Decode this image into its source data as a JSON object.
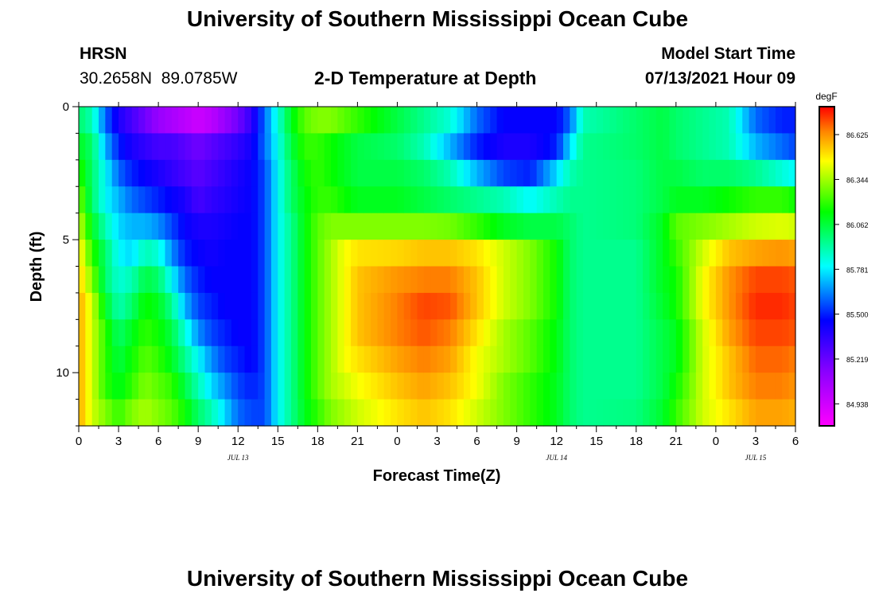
{
  "header": {
    "title": "University of Southern Mississippi Ocean Cube",
    "station": "HRSN",
    "coords": "30.2658N  89.0785W",
    "plot_title": "2-D Temperature at Depth",
    "model_label": "Model Start Time",
    "model_time": "07/13/2021 Hour 09"
  },
  "footer": {
    "title": "University of Southern Mississippi Ocean Cube"
  },
  "chart_data": {
    "type": "heatmap",
    "title": "2-D Temperature at Depth",
    "xlabel": "Forecast Time(Z)",
    "ylabel": "Depth (ft)",
    "x_hours": [
      0,
      54
    ],
    "y_range": [
      0,
      12
    ],
    "x_ticks": [
      "0",
      "3",
      "6",
      "9",
      "12",
      "15",
      "18",
      "21",
      "0",
      "3",
      "6",
      "9",
      "12",
      "15",
      "18",
      "21",
      "0",
      "3",
      "6"
    ],
    "y_ticks": [
      "0",
      "5",
      "10"
    ],
    "date_labels": [
      {
        "hour": 12,
        "label": "JUL 13"
      },
      {
        "hour": 36,
        "label": "JUL 14"
      },
      {
        "hour": 51,
        "label": "JUL 15"
      }
    ],
    "colorbar": {
      "unit": "degF",
      "min": 84.8,
      "max": 86.8,
      "ticks": [
        "86.625",
        "86.344",
        "86.062",
        "85.781",
        "85.500",
        "85.219",
        "84.938"
      ]
    },
    "depth_rows": [
      0,
      0.5,
      1,
      2,
      3,
      4,
      5,
      6,
      7,
      8,
      9,
      10,
      11,
      12
    ],
    "samples": [
      {
        "hour": 0,
        "values": [
          86.0,
          86.0,
          86.1,
          86.2,
          86.3,
          86.4,
          86.5,
          86.55,
          86.6,
          86.6,
          86.6,
          86.6,
          86.6,
          86.55
        ]
      },
      {
        "hour": 1,
        "values": [
          85.9,
          85.9,
          86.0,
          86.0,
          86.0,
          86.1,
          86.2,
          86.3,
          86.4,
          86.4,
          86.4,
          86.4,
          86.4,
          86.35
        ]
      },
      {
        "hour": 2,
        "values": [
          85.6,
          85.6,
          85.7,
          85.8,
          85.8,
          85.9,
          86.0,
          86.0,
          86.1,
          86.2,
          86.2,
          86.2,
          86.3,
          86.3
        ]
      },
      {
        "hour": 3,
        "values": [
          85.4,
          85.4,
          85.5,
          85.6,
          85.7,
          85.75,
          85.8,
          85.85,
          85.9,
          86.0,
          86.05,
          86.1,
          86.2,
          86.3
        ]
      },
      {
        "hour": 4,
        "values": [
          85.3,
          85.3,
          85.4,
          85.5,
          85.6,
          85.7,
          85.75,
          85.9,
          86.0,
          86.1,
          86.15,
          86.2,
          86.3,
          86.35
        ]
      },
      {
        "hour": 5,
        "values": [
          85.2,
          85.2,
          85.35,
          85.45,
          85.55,
          85.7,
          85.9,
          86.05,
          86.15,
          86.2,
          86.25,
          86.3,
          86.35,
          86.4
        ]
      },
      {
        "hour": 6,
        "values": [
          85.1,
          85.1,
          85.3,
          85.4,
          85.5,
          85.65,
          85.85,
          86.0,
          86.1,
          86.15,
          86.2,
          86.25,
          86.3,
          86.35
        ]
      },
      {
        "hour": 7,
        "values": [
          85.05,
          85.05,
          85.3,
          85.35,
          85.45,
          85.55,
          85.65,
          85.8,
          85.95,
          86.05,
          86.1,
          86.2,
          86.25,
          86.3
        ]
      },
      {
        "hour": 8,
        "values": [
          85.0,
          85.0,
          85.25,
          85.3,
          85.4,
          85.45,
          85.5,
          85.6,
          85.7,
          85.85,
          85.95,
          86.05,
          86.15,
          86.2
        ]
      },
      {
        "hour": 9,
        "values": [
          84.95,
          84.95,
          85.2,
          85.25,
          85.3,
          85.4,
          85.45,
          85.5,
          85.55,
          85.65,
          85.8,
          85.9,
          86.0,
          86.1
        ]
      },
      {
        "hour": 10,
        "values": [
          85.0,
          85.0,
          85.25,
          85.3,
          85.35,
          85.4,
          85.42,
          85.45,
          85.5,
          85.55,
          85.65,
          85.75,
          85.9,
          86.0
        ]
      },
      {
        "hour": 11,
        "values": [
          85.1,
          85.1,
          85.3,
          85.35,
          85.38,
          85.42,
          85.45,
          85.45,
          85.45,
          85.5,
          85.55,
          85.65,
          85.75,
          85.85
        ]
      },
      {
        "hour": 12,
        "values": [
          85.2,
          85.2,
          85.35,
          85.4,
          85.42,
          85.45,
          85.45,
          85.45,
          85.45,
          85.45,
          85.5,
          85.55,
          85.6,
          85.7
        ]
      },
      {
        "hour": 13,
        "values": [
          85.35,
          85.35,
          85.42,
          85.45,
          85.45,
          85.45,
          85.45,
          85.45,
          85.45,
          85.45,
          85.45,
          85.5,
          85.55,
          85.6
        ]
      },
      {
        "hour": 14,
        "values": [
          85.6,
          85.6,
          85.6,
          85.55,
          85.55,
          85.55,
          85.55,
          85.55,
          85.55,
          85.55,
          85.55,
          85.55,
          85.55,
          85.55
        ]
      },
      {
        "hour": 15,
        "values": [
          85.85,
          85.85,
          85.82,
          85.8,
          85.8,
          85.8,
          85.8,
          85.8,
          85.8,
          85.8,
          85.8,
          85.8,
          85.8,
          85.8
        ]
      },
      {
        "hour": 16,
        "values": [
          86.1,
          86.1,
          86.05,
          86.0,
          86.0,
          85.95,
          85.95,
          85.95,
          85.95,
          85.95,
          85.95,
          85.95,
          85.95,
          85.95
        ]
      },
      {
        "hour": 17,
        "values": [
          86.25,
          86.25,
          86.2,
          86.15,
          86.12,
          86.12,
          86.12,
          86.12,
          86.12,
          86.12,
          86.12,
          86.12,
          86.1,
          86.05
        ]
      },
      {
        "hour": 18,
        "values": [
          86.3,
          86.3,
          86.2,
          86.2,
          86.2,
          86.25,
          86.25,
          86.25,
          86.25,
          86.25,
          86.25,
          86.25,
          86.2,
          86.15
        ]
      },
      {
        "hour": 19,
        "values": [
          86.3,
          86.3,
          86.15,
          86.15,
          86.2,
          86.3,
          86.35,
          86.35,
          86.35,
          86.35,
          86.35,
          86.35,
          86.3,
          86.25
        ]
      },
      {
        "hour": 20,
        "values": [
          86.25,
          86.25,
          86.1,
          86.1,
          86.15,
          86.3,
          86.45,
          86.45,
          86.45,
          86.45,
          86.45,
          86.4,
          86.35,
          86.3
        ]
      },
      {
        "hour": 21,
        "values": [
          86.2,
          86.2,
          86.05,
          86.05,
          86.1,
          86.3,
          86.5,
          86.55,
          86.55,
          86.55,
          86.5,
          86.45,
          86.4,
          86.35
        ]
      },
      {
        "hour": 24,
        "values": [
          86.05,
          86.05,
          86.0,
          86.05,
          86.1,
          86.3,
          86.52,
          86.62,
          86.65,
          86.65,
          86.6,
          86.55,
          86.5,
          86.45
        ]
      },
      {
        "hour": 26,
        "values": [
          85.95,
          85.95,
          85.9,
          86.0,
          86.05,
          86.3,
          86.55,
          86.65,
          86.72,
          86.7,
          86.65,
          86.6,
          86.55,
          86.5
        ]
      },
      {
        "hour": 28,
        "values": [
          85.85,
          85.85,
          85.7,
          85.9,
          86.0,
          86.28,
          86.55,
          86.65,
          86.7,
          86.65,
          86.6,
          86.55,
          86.5,
          86.45
        ]
      },
      {
        "hour": 30,
        "values": [
          85.6,
          85.6,
          85.5,
          85.7,
          85.95,
          86.2,
          86.5,
          86.55,
          86.55,
          86.5,
          86.45,
          86.45,
          86.4,
          86.35
        ]
      },
      {
        "hour": 32,
        "values": [
          85.45,
          85.45,
          85.4,
          85.55,
          85.9,
          86.1,
          86.4,
          86.4,
          86.4,
          86.35,
          86.35,
          86.3,
          86.3,
          86.25
        ]
      },
      {
        "hour": 34,
        "values": [
          85.45,
          85.45,
          85.4,
          85.5,
          85.8,
          86.05,
          86.3,
          86.3,
          86.3,
          86.25,
          86.25,
          86.2,
          86.2,
          86.15
        ]
      },
      {
        "hour": 36,
        "values": [
          85.45,
          85.45,
          85.5,
          85.75,
          85.9,
          86.05,
          86.15,
          86.15,
          86.15,
          86.12,
          86.12,
          86.1,
          86.1,
          86.08
        ]
      },
      {
        "hour": 37,
        "values": [
          85.6,
          85.6,
          85.75,
          85.9,
          85.95,
          86.0,
          86.0,
          86.0,
          86.0,
          86.0,
          86.0,
          86.0,
          86.0,
          86.02
        ]
      },
      {
        "hour": 38,
        "values": [
          85.9,
          85.9,
          85.95,
          85.95,
          85.95,
          85.95,
          85.95,
          85.95,
          85.95,
          85.95,
          85.95,
          85.95,
          85.95,
          86.0
        ]
      },
      {
        "hour": 42,
        "values": [
          86.0,
          86.0,
          86.0,
          85.98,
          85.98,
          85.98,
          85.95,
          85.95,
          85.95,
          85.95,
          85.95,
          85.95,
          85.97,
          86.05
        ]
      },
      {
        "hour": 44,
        "values": [
          86.05,
          86.05,
          86.05,
          86.05,
          86.05,
          86.1,
          86.1,
          86.1,
          86.08,
          86.05,
          86.05,
          86.05,
          86.08,
          86.15
        ]
      },
      {
        "hour": 45,
        "values": [
          86.0,
          86.0,
          86.0,
          86.05,
          86.1,
          86.25,
          86.2,
          86.15,
          86.15,
          86.1,
          86.1,
          86.15,
          86.2,
          86.25
        ]
      },
      {
        "hour": 47,
        "values": [
          85.95,
          85.95,
          85.95,
          86.0,
          86.1,
          86.3,
          86.4,
          86.45,
          86.45,
          86.4,
          86.4,
          86.4,
          86.4,
          86.35
        ]
      },
      {
        "hour": 49,
        "values": [
          85.9,
          85.9,
          85.9,
          86.0,
          86.15,
          86.35,
          86.55,
          86.62,
          86.62,
          86.6,
          86.55,
          86.55,
          86.5,
          86.45
        ]
      },
      {
        "hour": 51,
        "values": [
          85.6,
          85.6,
          85.7,
          85.95,
          86.2,
          86.4,
          86.6,
          86.72,
          86.75,
          86.72,
          86.68,
          86.65,
          86.6,
          86.5
        ]
      },
      {
        "hour": 53,
        "values": [
          85.5,
          85.5,
          85.6,
          85.85,
          86.2,
          86.42,
          86.62,
          86.72,
          86.75,
          86.72,
          86.68,
          86.65,
          86.6,
          86.5
        ]
      },
      {
        "hour": 54,
        "values": [
          85.5,
          85.5,
          85.55,
          85.8,
          86.15,
          86.4,
          86.6,
          86.7,
          86.72,
          86.7,
          86.65,
          86.62,
          86.58,
          86.5
        ]
      }
    ]
  }
}
